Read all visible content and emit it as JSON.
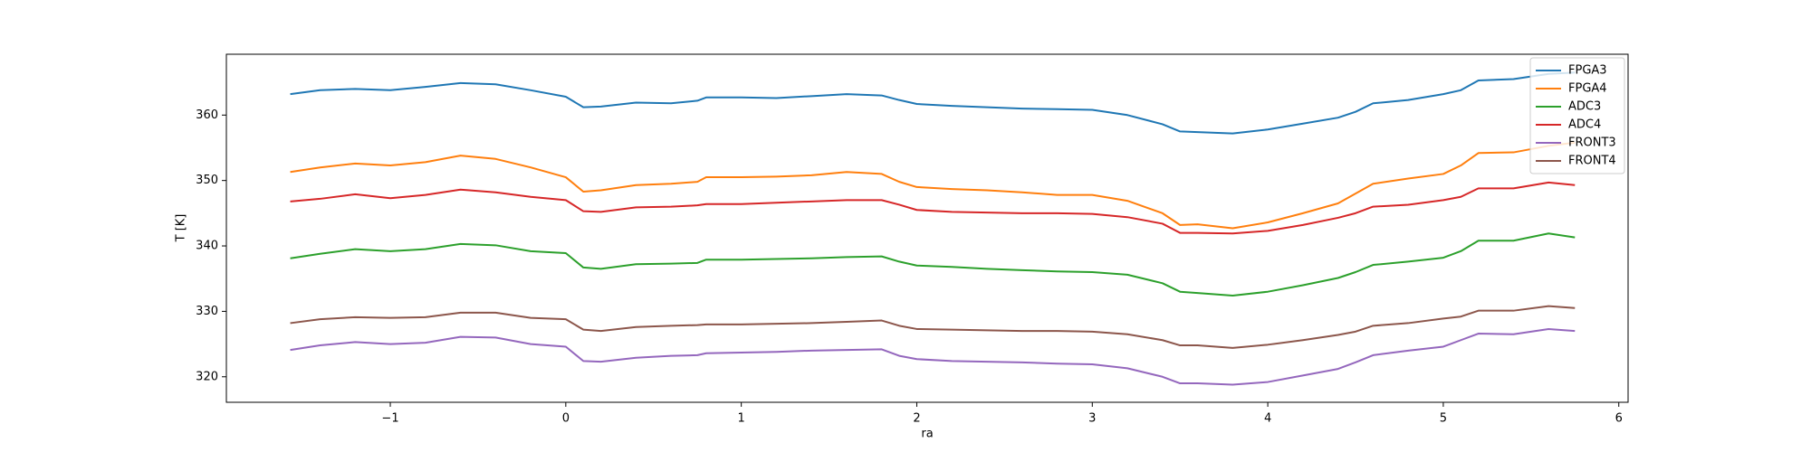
{
  "chart_data": {
    "type": "line",
    "xlabel": "ra",
    "ylabel": "T [K]",
    "x": [
      -1.57,
      -1.4,
      -1.2,
      -1.0,
      -0.8,
      -0.6,
      -0.4,
      -0.2,
      0.0,
      0.1,
      0.2,
      0.4,
      0.6,
      0.75,
      0.8,
      1.0,
      1.2,
      1.4,
      1.6,
      1.8,
      1.9,
      2.0,
      2.2,
      2.4,
      2.6,
      2.8,
      3.0,
      3.2,
      3.4,
      3.5,
      3.6,
      3.8,
      4.0,
      4.2,
      4.4,
      4.5,
      4.6,
      4.8,
      5.0,
      5.1,
      5.2,
      5.4,
      5.6,
      5.75
    ],
    "series": [
      {
        "name": "FPGA3",
        "color": "#1f77b4",
        "values": [
          363.2,
          363.8,
          364.0,
          363.8,
          364.3,
          364.9,
          364.7,
          363.8,
          362.8,
          361.2,
          361.3,
          361.9,
          361.8,
          362.2,
          362.7,
          362.7,
          362.6,
          362.9,
          363.2,
          363.0,
          362.3,
          361.7,
          361.4,
          361.2,
          361.0,
          360.9,
          360.8,
          360.0,
          358.6,
          357.5,
          357.4,
          357.2,
          357.8,
          358.7,
          359.6,
          360.5,
          361.8,
          362.3,
          363.2,
          363.8,
          365.3,
          365.5,
          366.3,
          366.5
        ]
      },
      {
        "name": "FPGA4",
        "color": "#ff7f0e",
        "values": [
          351.3,
          352.0,
          352.6,
          352.3,
          352.8,
          353.8,
          353.3,
          352.0,
          350.5,
          348.3,
          348.5,
          349.3,
          349.5,
          349.8,
          350.5,
          350.5,
          350.6,
          350.8,
          351.3,
          351.0,
          349.8,
          349.0,
          348.7,
          348.5,
          348.2,
          347.8,
          347.8,
          346.9,
          345.0,
          343.2,
          343.3,
          342.7,
          343.6,
          345.0,
          346.5,
          348.0,
          349.5,
          350.3,
          351.0,
          352.3,
          354.2,
          354.3,
          355.3,
          355.8
        ]
      },
      {
        "name": "ADC3",
        "color": "#2ca02c",
        "values": [
          338.1,
          338.8,
          339.5,
          339.2,
          339.5,
          340.3,
          340.1,
          339.2,
          338.9,
          336.7,
          336.5,
          337.2,
          337.3,
          337.4,
          337.9,
          337.9,
          338.0,
          338.1,
          338.3,
          338.4,
          337.6,
          337.0,
          336.8,
          336.5,
          336.3,
          336.1,
          336.0,
          335.6,
          334.3,
          333.0,
          332.8,
          332.4,
          333.0,
          334.0,
          335.1,
          336.0,
          337.1,
          337.6,
          338.2,
          339.2,
          340.8,
          340.8,
          341.9,
          341.3
        ]
      },
      {
        "name": "ADC4",
        "color": "#d62728",
        "values": [
          346.8,
          347.2,
          347.9,
          347.3,
          347.8,
          348.6,
          348.2,
          347.5,
          347.0,
          345.3,
          345.2,
          345.9,
          346.0,
          346.2,
          346.4,
          346.4,
          346.6,
          346.8,
          347.0,
          347.0,
          346.3,
          345.5,
          345.2,
          345.1,
          345.0,
          345.0,
          344.9,
          344.4,
          343.4,
          342.0,
          342.0,
          341.9,
          342.3,
          343.2,
          344.3,
          345.0,
          346.0,
          346.3,
          347.0,
          347.5,
          348.8,
          348.8,
          349.7,
          349.3
        ]
      },
      {
        "name": "FRONT3",
        "color": "#9467bd",
        "values": [
          324.1,
          324.8,
          325.3,
          325.0,
          325.2,
          326.1,
          326.0,
          325.0,
          324.6,
          322.4,
          322.3,
          322.9,
          323.2,
          323.3,
          323.6,
          323.7,
          323.8,
          324.0,
          324.1,
          324.2,
          323.2,
          322.7,
          322.4,
          322.3,
          322.2,
          322.0,
          321.9,
          321.3,
          320.0,
          319.0,
          319.0,
          318.8,
          319.2,
          320.2,
          321.2,
          322.2,
          323.3,
          324.0,
          324.6,
          325.6,
          326.6,
          326.5,
          327.3,
          327.0
        ]
      },
      {
        "name": "FRONT4",
        "color": "#8c564b",
        "values": [
          328.2,
          328.8,
          329.1,
          329.0,
          329.1,
          329.8,
          329.8,
          329.0,
          328.8,
          327.2,
          327.0,
          327.6,
          327.8,
          327.9,
          328.0,
          328.0,
          328.1,
          328.2,
          328.4,
          328.6,
          327.8,
          327.3,
          327.2,
          327.1,
          327.0,
          327.0,
          326.9,
          326.5,
          325.6,
          324.8,
          324.8,
          324.4,
          324.9,
          325.6,
          326.4,
          326.9,
          327.8,
          328.2,
          328.9,
          329.2,
          330.1,
          330.1,
          330.8,
          330.5
        ]
      }
    ],
    "xlim": [
      -1.934,
      6.053
    ],
    "ylim": [
      316.1,
      369.3
    ],
    "xticks": [
      {
        "value": -1,
        "label": "−1"
      },
      0,
      1,
      2,
      3,
      4,
      5,
      6
    ],
    "yticks": [
      320,
      330,
      340,
      350,
      360
    ],
    "grid": false,
    "legend": "upper right"
  }
}
